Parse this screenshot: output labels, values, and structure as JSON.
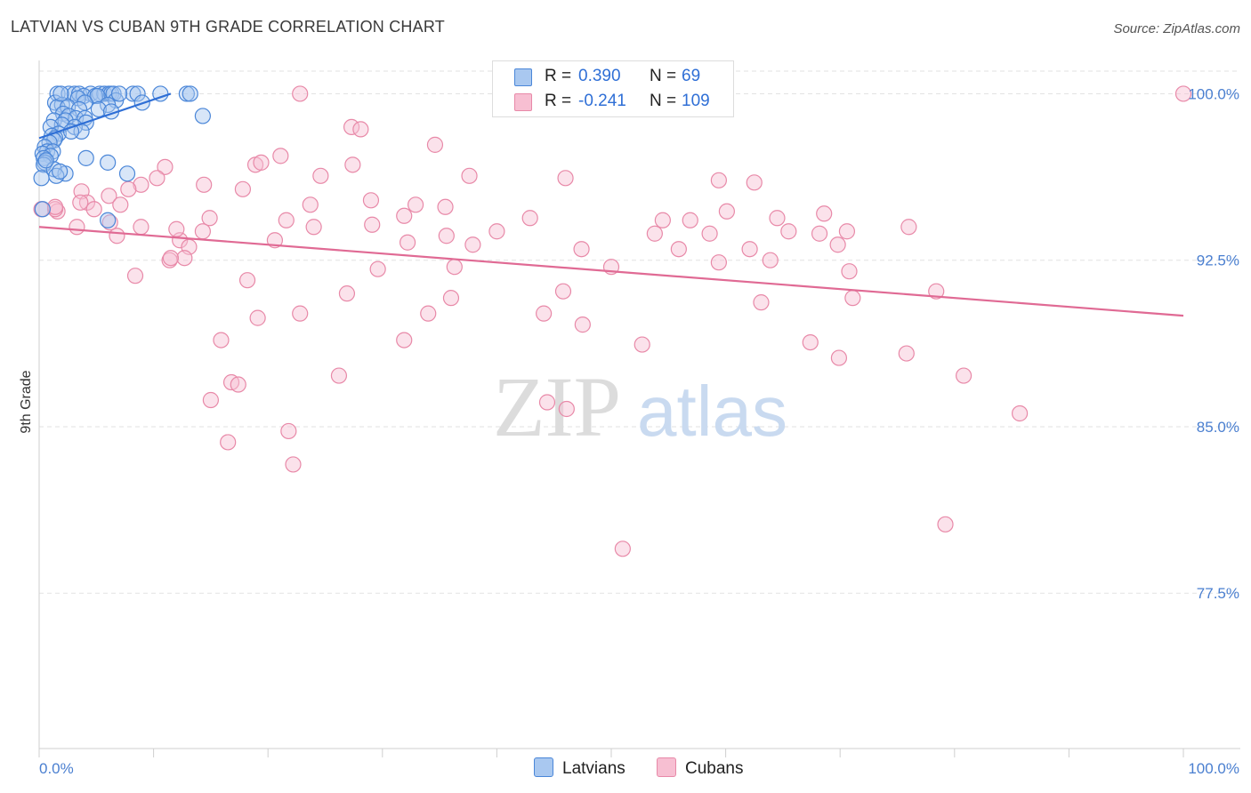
{
  "title": "LATVIAN VS CUBAN 9TH GRADE CORRELATION CHART",
  "source": "Source: ZipAtlas.com",
  "watermark": {
    "zip": "ZIP",
    "atlas": "atlas"
  },
  "legend": {
    "rows": [
      {
        "r_label": "R =",
        "r_value": "0.390",
        "n_label": "N =",
        "n_value": "69"
      },
      {
        "r_label": "R =",
        "r_value": "-0.241",
        "n_label": "N =",
        "n_value": "109"
      }
    ]
  },
  "bottom_legend": {
    "latvians": "Latvians",
    "cubans": "Cubans"
  },
  "colors": {
    "latvians_fill": "#a9c8f0",
    "latvians_stroke": "#4a86d8",
    "latvians_line": "#2f6fd6",
    "cubans_fill": "#f7bfd2",
    "cubans_stroke": "#e889a8",
    "cubans_line": "#e06a94",
    "tick_text": "#4a7fd0",
    "grid": "#e2e2e2"
  },
  "chart_data": {
    "type": "scatter",
    "title": "LATVIAN VS CUBAN 9TH GRADE CORRELATION CHART",
    "xlabel": "",
    "ylabel": "9th Grade",
    "xlim": [
      0,
      100
    ],
    "ylim": [
      70.5,
      101.5
    ],
    "x_tick_labels": [
      "0.0%",
      "100.0%"
    ],
    "y_ticks": [
      {
        "value": 100.0,
        "label": "100.0%"
      },
      {
        "value": 92.5,
        "label": "92.5%"
      },
      {
        "value": 85.0,
        "label": "85.0%"
      },
      {
        "value": 77.5,
        "label": "77.5%"
      }
    ],
    "series": [
      {
        "name": "Latvians",
        "r": 0.39,
        "n": 69,
        "trend": {
          "x": [
            0.0,
            11.5
          ],
          "y": [
            98.0,
            100.0
          ]
        },
        "points": [
          [
            1.6,
            100.0
          ],
          [
            2.6,
            100.0
          ],
          [
            3.1,
            100.0
          ],
          [
            3.5,
            100.0
          ],
          [
            4.5,
            100.0
          ],
          [
            5.3,
            100.0
          ],
          [
            5.7,
            100.0
          ],
          [
            6.1,
            100.0
          ],
          [
            6.3,
            100.0
          ],
          [
            6.5,
            100.0
          ],
          [
            8.2,
            100.0
          ],
          [
            8.6,
            100.0
          ],
          [
            10.6,
            100.0
          ],
          [
            12.9,
            100.0
          ],
          [
            13.2,
            100.0
          ],
          [
            3.9,
            99.9
          ],
          [
            4.9,
            99.9
          ],
          [
            5.1,
            99.9
          ],
          [
            3.4,
            99.8
          ],
          [
            6.7,
            99.7
          ],
          [
            1.4,
            99.6
          ],
          [
            4.0,
            99.6
          ],
          [
            2.0,
            99.5
          ],
          [
            6.0,
            99.5
          ],
          [
            1.6,
            99.4
          ],
          [
            2.5,
            99.4
          ],
          [
            3.5,
            99.3
          ],
          [
            5.2,
            99.3
          ],
          [
            6.3,
            99.2
          ],
          [
            2.1,
            99.1
          ],
          [
            2.6,
            99.0
          ],
          [
            14.3,
            99.0
          ],
          [
            3.2,
            98.9
          ],
          [
            4.0,
            98.9
          ],
          [
            1.3,
            98.8
          ],
          [
            2.3,
            98.8
          ],
          [
            4.1,
            98.7
          ],
          [
            2.0,
            98.6
          ],
          [
            1.0,
            98.5
          ],
          [
            3.1,
            98.5
          ],
          [
            3.7,
            98.3
          ],
          [
            1.7,
            98.2
          ],
          [
            1.1,
            98.1
          ],
          [
            1.4,
            98.0
          ],
          [
            1.3,
            97.9
          ],
          [
            0.9,
            97.8
          ],
          [
            0.5,
            97.6
          ],
          [
            0.7,
            97.4
          ],
          [
            1.2,
            97.4
          ],
          [
            0.3,
            97.3
          ],
          [
            1.0,
            97.2
          ],
          [
            0.4,
            97.1
          ],
          [
            4.1,
            97.1
          ],
          [
            0.5,
            96.9
          ],
          [
            6.0,
            96.9
          ],
          [
            0.4,
            96.8
          ],
          [
            1.3,
            96.6
          ],
          [
            2.3,
            96.4
          ],
          [
            7.7,
            96.4
          ],
          [
            1.5,
            96.3
          ],
          [
            0.2,
            96.2
          ],
          [
            0.3,
            94.8
          ],
          [
            6.0,
            94.3
          ],
          [
            1.9,
            100.0
          ],
          [
            7.0,
            100.0
          ],
          [
            9.0,
            99.6
          ],
          [
            2.8,
            98.3
          ],
          [
            0.6,
            97.0
          ],
          [
            1.8,
            96.5
          ]
        ]
      },
      {
        "name": "Cubans",
        "r": -0.241,
        "n": 109,
        "trend": {
          "x": [
            0.0,
            100.0
          ],
          "y": [
            94.0,
            90.0
          ]
        },
        "points": [
          [
            0.2,
            94.8
          ],
          [
            1.6,
            94.7
          ],
          [
            1.4,
            94.8
          ],
          [
            22.8,
            100.0
          ],
          [
            100.0,
            100.0
          ],
          [
            27.3,
            98.5
          ],
          [
            28.1,
            98.4
          ],
          [
            34.6,
            97.7
          ],
          [
            21.1,
            97.2
          ],
          [
            18.9,
            96.8
          ],
          [
            19.4,
            96.9
          ],
          [
            27.4,
            96.8
          ],
          [
            11.0,
            96.7
          ],
          [
            37.6,
            96.3
          ],
          [
            24.6,
            96.3
          ],
          [
            10.3,
            96.2
          ],
          [
            46.0,
            96.2
          ],
          [
            59.4,
            96.1
          ],
          [
            62.5,
            96.0
          ],
          [
            8.9,
            95.9
          ],
          [
            7.8,
            95.7
          ],
          [
            14.4,
            95.9
          ],
          [
            17.8,
            95.7
          ],
          [
            3.7,
            95.6
          ],
          [
            6.1,
            95.4
          ],
          [
            29.0,
            95.2
          ],
          [
            23.7,
            95.0
          ],
          [
            32.9,
            95.0
          ],
          [
            35.5,
            94.9
          ],
          [
            7.1,
            95.0
          ],
          [
            4.2,
            95.1
          ],
          [
            3.6,
            95.1
          ],
          [
            1.4,
            94.9
          ],
          [
            4.8,
            94.8
          ],
          [
            14.9,
            94.4
          ],
          [
            21.6,
            94.3
          ],
          [
            29.1,
            94.1
          ],
          [
            31.9,
            94.5
          ],
          [
            42.9,
            94.4
          ],
          [
            56.9,
            94.3
          ],
          [
            54.5,
            94.3
          ],
          [
            64.5,
            94.4
          ],
          [
            68.6,
            94.6
          ],
          [
            6.2,
            94.2
          ],
          [
            8.9,
            94.0
          ],
          [
            24.0,
            94.0
          ],
          [
            3.3,
            94.0
          ],
          [
            14.3,
            93.8
          ],
          [
            40.0,
            93.8
          ],
          [
            53.8,
            93.7
          ],
          [
            58.6,
            93.7
          ],
          [
            68.2,
            93.7
          ],
          [
            70.6,
            93.8
          ],
          [
            6.8,
            93.6
          ],
          [
            12.3,
            93.4
          ],
          [
            20.6,
            93.4
          ],
          [
            32.2,
            93.3
          ],
          [
            35.6,
            93.6
          ],
          [
            37.9,
            93.2
          ],
          [
            47.4,
            93.0
          ],
          [
            55.9,
            93.0
          ],
          [
            62.1,
            93.0
          ],
          [
            69.8,
            93.2
          ],
          [
            13.1,
            93.1
          ],
          [
            12.7,
            92.6
          ],
          [
            11.4,
            92.5
          ],
          [
            11.5,
            92.6
          ],
          [
            29.6,
            92.1
          ],
          [
            36.3,
            92.2
          ],
          [
            50.0,
            92.2
          ],
          [
            59.4,
            92.4
          ],
          [
            63.9,
            92.5
          ],
          [
            70.8,
            92.0
          ],
          [
            8.4,
            91.8
          ],
          [
            18.2,
            91.6
          ],
          [
            26.9,
            91.0
          ],
          [
            36.0,
            90.8
          ],
          [
            45.8,
            91.1
          ],
          [
            63.1,
            90.6
          ],
          [
            71.1,
            90.8
          ],
          [
            78.4,
            91.1
          ],
          [
            19.1,
            89.9
          ],
          [
            22.8,
            90.1
          ],
          [
            34.0,
            90.1
          ],
          [
            44.1,
            90.1
          ],
          [
            47.5,
            89.6
          ],
          [
            15.9,
            88.9
          ],
          [
            31.9,
            88.9
          ],
          [
            52.7,
            88.7
          ],
          [
            67.4,
            88.8
          ],
          [
            69.9,
            88.1
          ],
          [
            75.8,
            88.3
          ],
          [
            80.8,
            87.3
          ],
          [
            26.2,
            87.3
          ],
          [
            16.8,
            87.0
          ],
          [
            17.4,
            86.9
          ],
          [
            15.0,
            86.2
          ],
          [
            44.4,
            86.1
          ],
          [
            46.1,
            85.8
          ],
          [
            85.7,
            85.6
          ],
          [
            21.8,
            84.8
          ],
          [
            16.5,
            84.3
          ],
          [
            22.2,
            83.3
          ],
          [
            79.2,
            80.6
          ],
          [
            51.0,
            79.5
          ],
          [
            12.0,
            93.9
          ],
          [
            65.5,
            93.8
          ],
          [
            60.1,
            94.7
          ],
          [
            76.0,
            94.0
          ]
        ]
      }
    ]
  }
}
